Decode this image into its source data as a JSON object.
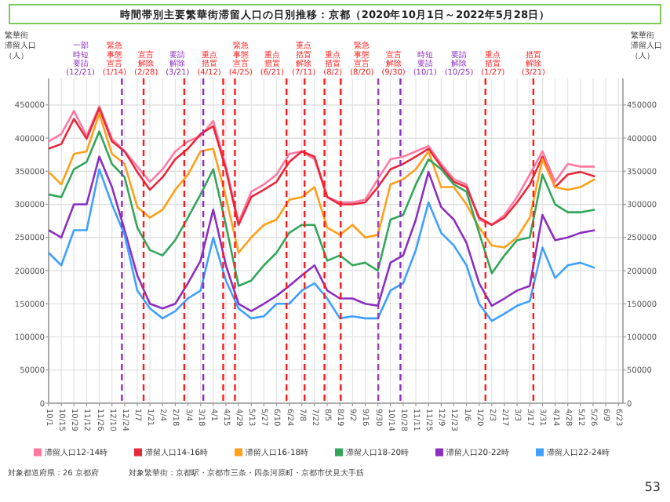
{
  "chart_data": {
    "type": "line",
    "title": "時間帯別主要繁華街滞留人口の日別推移：京都（2020年10月1日～2022年5月28日）",
    "ylabel": "繁華街滞留人口（人）",
    "y2label": "繁華街滞留人口（人）",
    "x": [
      "2020-10-01",
      "2020-10-15",
      "2020-10-29",
      "2020-11-12",
      "2020-11-26",
      "2020-12-10",
      "2020-12-24",
      "2021-01-07",
      "2021-01-21",
      "2021-02-04",
      "2021-02-18",
      "2021-03-04",
      "2021-03-18",
      "2021-04-01",
      "2021-04-15",
      "2021-04-29",
      "2021-05-13",
      "2021-05-27",
      "2021-06-10",
      "2021-06-24",
      "2021-07-08",
      "2021-07-22",
      "2021-08-05",
      "2021-08-19",
      "2021-09-02",
      "2021-09-16",
      "2021-09-30",
      "2021-10-14",
      "2021-10-28",
      "2021-11-11",
      "2021-11-25",
      "2021-12-09",
      "2021-12-23",
      "2022-01-06",
      "2022-01-20",
      "2022-02-03",
      "2022-02-17",
      "2022-03-03",
      "2022-03-17",
      "2022-03-31",
      "2022-04-14",
      "2022-04-28",
      "2022-05-12",
      "2022-05-28"
    ],
    "series": [
      {
        "name": "滞留人口12-14時",
        "color": "#ff7aa2",
        "values": [
          395000,
          406000,
          441000,
          403000,
          448000,
          399000,
          380000,
          357000,
          334000,
          353000,
          380000,
          395000,
          403000,
          426000,
          357000,
          273000,
          319000,
          330000,
          345000,
          376000,
          380000,
          368000,
          311000,
          303000,
          303000,
          307000,
          338000,
          368000,
          372000,
          380000,
          388000,
          361000,
          338000,
          330000,
          277000,
          269000,
          284000,
          311000,
          345000,
          380000,
          334000,
          361000,
          357000,
          357000
        ]
      },
      {
        "name": "滞留人口14-16時",
        "color": "#e8283c",
        "values": [
          384000,
          391000,
          429000,
          399000,
          445000,
          395000,
          380000,
          349000,
          322000,
          341000,
          368000,
          384000,
          406000,
          418000,
          353000,
          269000,
          311000,
          322000,
          334000,
          364000,
          380000,
          372000,
          311000,
          300000,
          300000,
          303000,
          326000,
          353000,
          361000,
          372000,
          384000,
          357000,
          334000,
          326000,
          280000,
          269000,
          280000,
          303000,
          330000,
          372000,
          326000,
          345000,
          349000,
          342000
        ]
      },
      {
        "name": "滞留人口16-18時",
        "color": "#ff9f1a",
        "values": [
          349000,
          330000,
          376000,
          380000,
          437000,
          376000,
          361000,
          296000,
          280000,
          292000,
          322000,
          345000,
          380000,
          384000,
          311000,
          227000,
          250000,
          269000,
          277000,
          307000,
          311000,
          326000,
          265000,
          254000,
          269000,
          250000,
          254000,
          330000,
          338000,
          353000,
          380000,
          326000,
          326000,
          300000,
          265000,
          238000,
          235000,
          250000,
          280000,
          368000,
          326000,
          322000,
          326000,
          338000
        ]
      },
      {
        "name": "滞留人口18-20時",
        "color": "#33a65a",
        "values": [
          315000,
          311000,
          353000,
          364000,
          410000,
          361000,
          341000,
          265000,
          231000,
          223000,
          246000,
          280000,
          315000,
          353000,
          269000,
          177000,
          185000,
          208000,
          227000,
          257000,
          269000,
          269000,
          215000,
          223000,
          208000,
          212000,
          200000,
          277000,
          284000,
          330000,
          368000,
          353000,
          330000,
          319000,
          257000,
          196000,
          223000,
          246000,
          250000,
          345000,
          300000,
          288000,
          288000,
          292000
        ]
      },
      {
        "name": "滞留人口20-22時",
        "color": "#8b2fc0",
        "values": [
          261000,
          250000,
          300000,
          300000,
          372000,
          326000,
          261000,
          193000,
          150000,
          143000,
          150000,
          181000,
          215000,
          292000,
          208000,
          150000,
          139000,
          150000,
          162000,
          177000,
          193000,
          208000,
          170000,
          158000,
          158000,
          150000,
          147000,
          212000,
          223000,
          277000,
          349000,
          296000,
          277000,
          242000,
          181000,
          147000,
          158000,
          170000,
          177000,
          284000,
          246000,
          250000,
          257000,
          261000
        ]
      },
      {
        "name": "滞留人口22-24時",
        "color": "#3fa0ff",
        "values": [
          227000,
          208000,
          261000,
          261000,
          353000,
          300000,
          254000,
          170000,
          143000,
          128000,
          139000,
          158000,
          170000,
          250000,
          185000,
          143000,
          128000,
          131000,
          150000,
          150000,
          170000,
          181000,
          158000,
          128000,
          131000,
          128000,
          128000,
          170000,
          181000,
          231000,
          303000,
          257000,
          238000,
          208000,
          150000,
          124000,
          135000,
          147000,
          154000,
          235000,
          189000,
          208000,
          212000,
          204000
        ]
      }
    ],
    "xlim": [
      "2020-10-01",
      "2022-06-28"
    ],
    "xticks": [
      {
        "value": "2020-10-01",
        "label": "10/1"
      },
      {
        "value": "2020-10-15",
        "label": "10/15"
      },
      {
        "value": "2020-10-29",
        "label": "10/29"
      },
      {
        "value": "2020-11-12",
        "label": "11/12"
      },
      {
        "value": "2020-11-26",
        "label": "11/26"
      },
      {
        "value": "2020-12-10",
        "label": "12/10"
      },
      {
        "value": "2020-12-24",
        "label": "12/24"
      },
      {
        "value": "2021-01-07",
        "label": "1/7"
      },
      {
        "value": "2021-01-21",
        "label": "1/21"
      },
      {
        "value": "2021-02-04",
        "label": "2/4"
      },
      {
        "value": "2021-02-18",
        "label": "2/18"
      },
      {
        "value": "2021-03-04",
        "label": "3/4"
      },
      {
        "value": "2021-03-18",
        "label": "3/18"
      },
      {
        "value": "2021-04-01",
        "label": "4/1"
      },
      {
        "value": "2021-04-15",
        "label": "4/15"
      },
      {
        "value": "2021-04-29",
        "label": "4/29"
      },
      {
        "value": "2021-05-13",
        "label": "5/13"
      },
      {
        "value": "2021-05-27",
        "label": "5/27"
      },
      {
        "value": "2021-06-10",
        "label": "6/10"
      },
      {
        "value": "2021-06-24",
        "label": "6/24"
      },
      {
        "value": "2021-07-08",
        "label": "7/8"
      },
      {
        "value": "2021-07-22",
        "label": "7/22"
      },
      {
        "value": "2021-08-05",
        "label": "8/5"
      },
      {
        "value": "2021-08-19",
        "label": "8/19"
      },
      {
        "value": "2021-09-02",
        "label": "9/2"
      },
      {
        "value": "2021-09-16",
        "label": "9/16"
      },
      {
        "value": "2021-09-30",
        "label": "9/30"
      },
      {
        "value": "2021-10-14",
        "label": "10/14"
      },
      {
        "value": "2021-10-28",
        "label": "10/28"
      },
      {
        "value": "2021-11-11",
        "label": "11/11"
      },
      {
        "value": "2021-11-25",
        "label": "11/25"
      },
      {
        "value": "2021-12-09",
        "label": "12/9"
      },
      {
        "value": "2021-12-23",
        "label": "12/23"
      },
      {
        "value": "2022-01-06",
        "label": "1/6"
      },
      {
        "value": "2022-01-20",
        "label": "1/20"
      },
      {
        "value": "2022-02-03",
        "label": "2/3"
      },
      {
        "value": "2022-02-17",
        "label": "2/17"
      },
      {
        "value": "2022-03-03",
        "label": "3/3"
      },
      {
        "value": "2022-03-17",
        "label": "3/17"
      },
      {
        "value": "2022-03-31",
        "label": "3/31"
      },
      {
        "value": "2022-04-14",
        "label": "4/14"
      },
      {
        "value": "2022-04-28",
        "label": "4/28"
      },
      {
        "value": "2022-05-12",
        "label": "5/12"
      },
      {
        "value": "2022-05-26",
        "label": "5/26"
      },
      {
        "value": "2022-06-09",
        "label": "6/9"
      },
      {
        "value": "2022-06-23",
        "label": "6/23"
      }
    ],
    "ylim": [
      0,
      490000
    ],
    "yticks": [
      0,
      50000,
      100000,
      150000,
      200000,
      250000,
      300000,
      350000,
      400000,
      450000
    ],
    "y2lim": [
      0,
      490000
    ],
    "y2ticks": [
      0,
      50000,
      100000,
      150000,
      200000,
      250000,
      300000,
      350000,
      400000,
      450000
    ],
    "grid": true,
    "legend": "bottom",
    "marker": "none",
    "line_style": "solid",
    "ref_lines": [
      {
        "axis": "x",
        "value": "2020-12-21",
        "label": "一部時短要請(12/21)",
        "color": "#8b2fc0",
        "line_style": "dashed"
      },
      {
        "axis": "x",
        "value": "2021-01-14",
        "label": "緊急事態宣言(1/14)",
        "color": "#ff1a1a",
        "line_style": "dashed"
      },
      {
        "axis": "x",
        "value": "2021-02-28",
        "label": "宣言解除(2/28)",
        "color": "#ff1a1a",
        "line_style": "dashed"
      },
      {
        "axis": "x",
        "value": "2021-03-21",
        "label": "要請解除(3/21)",
        "color": "#8b2fc0",
        "line_style": "dashed"
      },
      {
        "axis": "x",
        "value": "2021-04-12",
        "label": "重点措置(4/12)",
        "color": "#ff1a1a",
        "line_style": "dashed"
      },
      {
        "axis": "x",
        "value": "2021-04-25",
        "label": "緊急事態宣言(4/25)",
        "color": "#ff1a1a",
        "line_style": "dashed"
      },
      {
        "axis": "x",
        "value": "2021-06-21",
        "label": "重点措置(6/21)",
        "color": "#ff1a1a",
        "line_style": "dashed"
      },
      {
        "axis": "x",
        "value": "2021-07-11",
        "label": "重点措置解除(7/11)",
        "color": "#ff1a1a",
        "line_style": "dashed"
      },
      {
        "axis": "x",
        "value": "2021-08-02",
        "label": "重点措置(8/2)",
        "color": "#ff1a1a",
        "line_style": "dashed"
      },
      {
        "axis": "x",
        "value": "2021-08-20",
        "label": "緊急事態宣言(8/20)",
        "color": "#ff1a1a",
        "line_style": "dashed"
      },
      {
        "axis": "x",
        "value": "2021-09-30",
        "label": "宣言解除(9/30)",
        "color": "#ff1a1a",
        "line_style": "dashed"
      },
      {
        "axis": "x",
        "value": "2021-10-01",
        "label": "時短要請(10/1)",
        "color": "#8b2fc0",
        "line_style": "dashed"
      },
      {
        "axis": "x",
        "value": "2021-10-25",
        "label": "要請解除(10/25)",
        "color": "#8b2fc0",
        "line_style": "dashed"
      },
      {
        "axis": "x",
        "value": "2022-01-27",
        "label": "重点措置(1/27)",
        "color": "#ff1a1a",
        "line_style": "dashed"
      },
      {
        "axis": "x",
        "value": "2022-03-21",
        "label": "措置解除(3/21)",
        "color": "#ff1a1a",
        "line_style": "dashed"
      }
    ],
    "annotations": [
      "対象都道府県：26 京都府",
      "対象繁華街：京都駅・京都市三条・四条河原町・京都市伏見大手筋",
      "53"
    ]
  }
}
